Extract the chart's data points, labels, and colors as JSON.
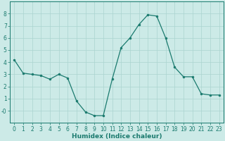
{
  "x": [
    0,
    1,
    2,
    3,
    4,
    5,
    6,
    7,
    8,
    9,
    10,
    11,
    12,
    13,
    14,
    15,
    16,
    17,
    18,
    19,
    20,
    21,
    22,
    23
  ],
  "y": [
    4.2,
    3.1,
    3.0,
    2.9,
    2.6,
    3.0,
    2.7,
    0.8,
    -0.1,
    -0.4,
    -0.4,
    2.6,
    5.2,
    6.0,
    7.1,
    7.9,
    7.8,
    6.0,
    3.6,
    2.8,
    2.8,
    1.4,
    1.3,
    1.3
  ],
  "line_color": "#1a7a6e",
  "marker": "o",
  "marker_size": 2.0,
  "bg_color": "#cceae7",
  "grid_color": "#aad4d0",
  "xlabel": "Humidex (Indice chaleur)",
  "xlim": [
    -0.5,
    23.5
  ],
  "ylim": [
    -1.0,
    9.0
  ],
  "yticks": [
    0,
    1,
    2,
    3,
    4,
    5,
    6,
    7,
    8
  ],
  "ytick_labels": [
    "-0",
    "1",
    "2",
    "3",
    "4",
    "5",
    "6",
    "7",
    "8"
  ],
  "xticks": [
    0,
    1,
    2,
    3,
    4,
    5,
    6,
    7,
    8,
    9,
    10,
    11,
    12,
    13,
    14,
    15,
    16,
    17,
    18,
    19,
    20,
    21,
    22,
    23
  ],
  "axis_color": "#1a7a6e",
  "label_fontsize": 6.5,
  "tick_fontsize": 5.5
}
